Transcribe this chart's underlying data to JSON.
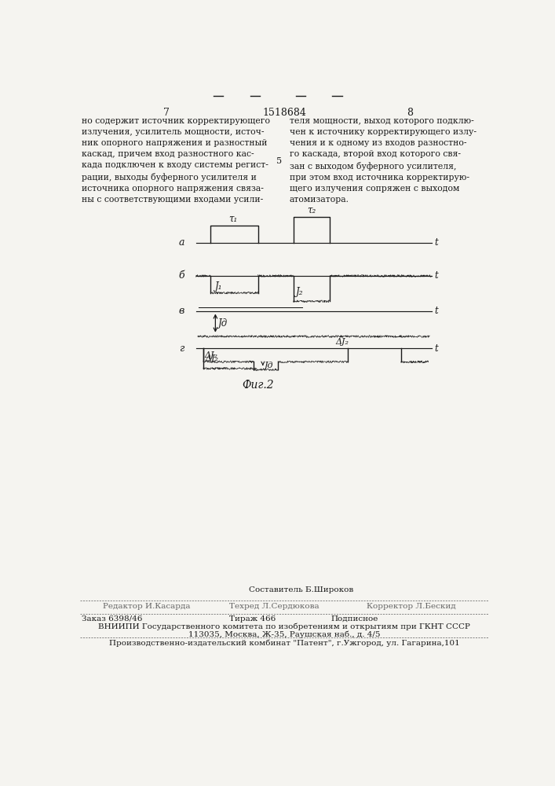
{
  "page_number_left": "7",
  "page_number_center": "1518684",
  "page_number_right": "8",
  "text_left": "но содержит источник корректирующего\nизлучения, усилитель мощности, источ-\nник опорного напряжения и разностный\nкаскад, причем вход разностного кас-\nкада подключен к входу системы регист-\nрации, выходы буферного усилителя и\nисточника опорного напряжения связа-\nны с соответствующими входами усили-",
  "text_right": "теля мощности, выход которого подклю-\nчен к источнику корректирующего излу-\nчения и к одному из входов разностно-\nго каскада, второй вход которого свя-\nзан с выходом буферного усилителя,\nпри этом вход источника корректирую-\nщего излучения сопряжен с выходом\nатомизатора.",
  "fig_caption": "Фиг.2",
  "label_num": "5",
  "bg_color": "#f5f4f0",
  "text_color": "#1a1a1a",
  "line_color": "#1a1a1a",
  "footer_line1_left": "Редактор И.Касарда",
  "footer_line1_center_top": "Составитель Б.Широков",
  "footer_line1_center": "Техред Л.Сердюкова",
  "footer_line1_right": "Корректор Л.Бескид",
  "footer_line2_left": "Заказ 6398/46",
  "footer_line2_center": "Тираж 466",
  "footer_line2_right": "Подписное",
  "footer_line3": "ВНИИПИ Государственного комитета по изобретениям и открытиям при ГКНТ СССР",
  "footer_line4": "113035, Москва, Ж-35, Раушская наб., д. 4/5",
  "footer_line5": "Производственно-издательский комбинат \"Патент\", г.Ужгород, ул. Гагарина,101"
}
